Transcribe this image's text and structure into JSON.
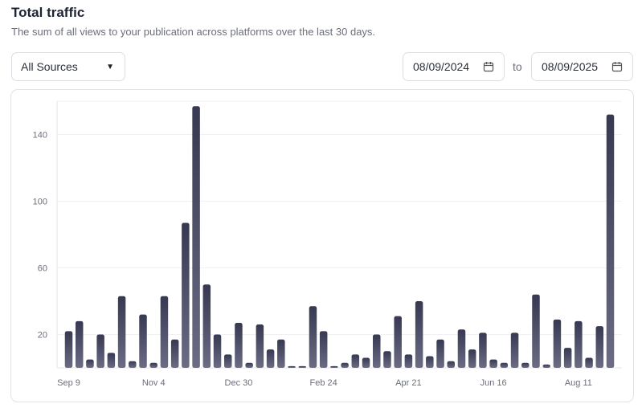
{
  "header": {
    "title": "Total traffic",
    "subtitle": "The sum of all views to your publication across platforms over the last 30 days."
  },
  "filters": {
    "source_selected": "All Sources",
    "date_from": "08/09/2024",
    "to_label": "to",
    "date_to": "08/09/2025"
  },
  "icons": {
    "dropdown": "caret-down-icon",
    "calendar": "calendar-icon"
  },
  "colors": {
    "bar_top": "#363951",
    "bar_bottom": "#6b6b84"
  },
  "chart_data": {
    "type": "bar",
    "title": "Total traffic",
    "xlabel": "",
    "ylabel": "",
    "ylim": [
      0,
      160
    ],
    "yticks": [
      20,
      60,
      100,
      140
    ],
    "xtick_labels": [
      {
        "label": "Sep 9",
        "index": 0
      },
      {
        "label": "Nov 4",
        "index": 8
      },
      {
        "label": "Dec 30",
        "index": 16
      },
      {
        "label": "Feb 24",
        "index": 24
      },
      {
        "label": "Apr 21",
        "index": 32
      },
      {
        "label": "Jun 16",
        "index": 40
      },
      {
        "label": "Aug 11",
        "index": 48
      }
    ],
    "grid": true,
    "values": [
      22,
      28,
      5,
      20,
      9,
      43,
      4,
      32,
      3,
      43,
      17,
      87,
      157,
      50,
      20,
      8,
      27,
      3,
      26,
      11,
      17,
      1,
      1,
      37,
      22,
      1,
      3,
      8,
      6,
      20,
      10,
      31,
      8,
      40,
      7,
      17,
      4,
      23,
      11,
      21,
      5,
      3,
      21,
      3,
      44,
      2,
      29,
      12,
      28,
      6,
      25,
      152
    ]
  }
}
